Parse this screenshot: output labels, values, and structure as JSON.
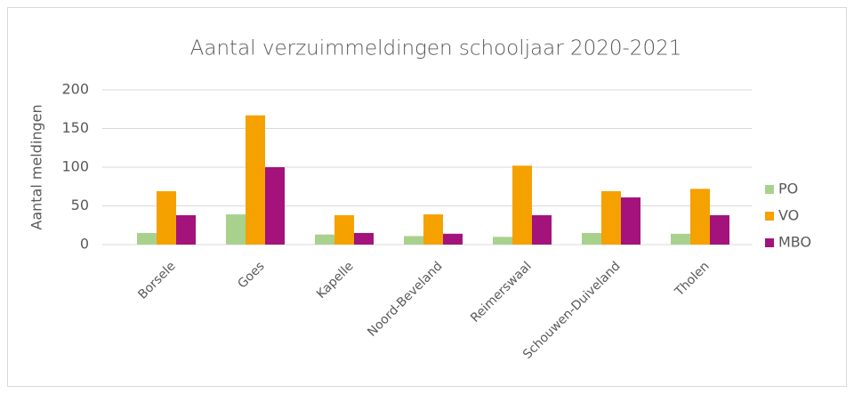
{
  "chart_data": {
    "type": "bar",
    "title": "Aantal verzuimmeldingen schooljaar 2020-2021",
    "y_label": "Aantal meldingen",
    "categories": [
      "Borsele",
      "Goes",
      "Kapelle",
      "Noord-Beveland",
      "Reimerswaal",
      "Schouwen-Duiveland",
      "Tholen"
    ],
    "series": [
      {
        "name": "PO",
        "color": "#a9d18e",
        "values": [
          15,
          39,
          13,
          11,
          10,
          15,
          14
        ]
      },
      {
        "name": "VO",
        "color": "#f5a100",
        "values": [
          69,
          167,
          38,
          39,
          102,
          69,
          72
        ]
      },
      {
        "name": "MBO",
        "color": "#a3137b",
        "values": [
          38,
          100,
          15,
          14,
          38,
          61,
          38
        ]
      }
    ],
    "ylim": [
      0,
      200
    ],
    "yticks": [
      0,
      50,
      100,
      150,
      200
    ],
    "grid": true,
    "legend": "right"
  }
}
